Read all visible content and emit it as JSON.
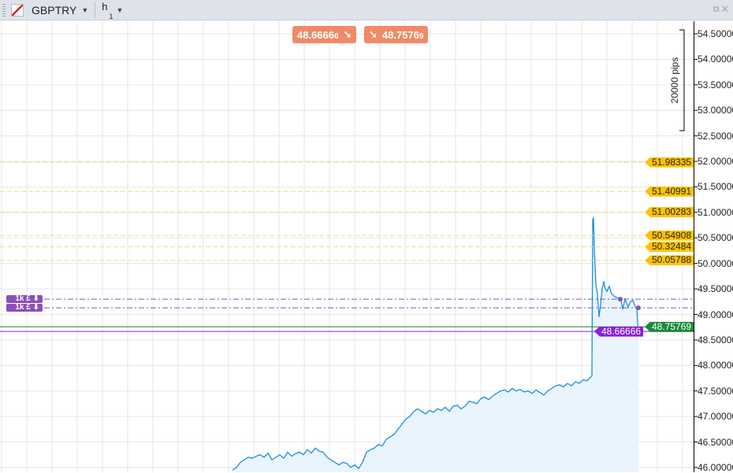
{
  "toolbar": {
    "symbol": "GBPTRY",
    "timeframe": "h",
    "timeframe_multiplier": "1",
    "symbol_icon": "instrument-flag-icon",
    "caret_icon": "chevron-down-icon",
    "popout_icon": "popout-icon",
    "close_icon": "close-icon"
  },
  "quotes": {
    "bid": "48.6666",
    "bid_small": "6",
    "ask": "48.7576",
    "ask_small": "9",
    "bid_arrow": "arrow-down-right-icon",
    "ask_arrow": "arrow-down-right-icon"
  },
  "ruler": {
    "label": "20000 pips"
  },
  "orders": [
    {
      "label": "1k £ ⬇",
      "price": 49.3
    },
    {
      "label": "1k £ ⬇",
      "price": 49.13
    }
  ],
  "price_tags": [
    {
      "label": "51.98335",
      "value": 51.98335
    },
    {
      "label": "51.40991",
      "value": 51.40991
    },
    {
      "label": "51.00283",
      "value": 51.00283
    },
    {
      "label": "50.54908",
      "value": 50.54908
    },
    {
      "label": "50.32484",
      "value": 50.32484
    },
    {
      "label": "50.05788",
      "value": 50.05788
    }
  ],
  "ask_tag": {
    "label": "48.75769",
    "value": 48.75769,
    "color": "#1a8a3a"
  },
  "bid_tag": {
    "label": "48.66666",
    "value": 48.66666,
    "color": "#8a1fd6"
  },
  "colors": {
    "line": "#1a90e0",
    "fill": "#eaf4fc",
    "level": "#f5d97a",
    "order": "#8a4fb8"
  },
  "chart_data": {
    "type": "area",
    "ylim": [
      46.0,
      54.5
    ],
    "y_ticks": [
      "54.50000",
      "54.00000",
      "53.50000",
      "53.00000",
      "52.50000",
      "52.00000",
      "51.50000",
      "51.00000",
      "50.50000",
      "50.00000",
      "49.50000",
      "49.00000",
      "48.50000",
      "48.00000",
      "47.50000",
      "47.00000",
      "46.50000",
      "46.00000"
    ],
    "x": [
      0,
      1,
      2,
      3,
      4,
      5,
      6,
      7,
      8,
      9,
      10,
      11,
      12,
      13,
      14,
      15,
      16,
      17,
      18,
      19,
      20,
      21,
      22,
      23,
      24,
      25,
      26,
      27,
      28,
      29,
      30,
      31,
      32,
      33,
      34,
      35,
      36,
      37,
      38,
      39,
      40,
      41,
      42,
      43,
      44,
      45,
      46,
      47,
      48,
      49,
      50,
      51,
      52,
      53,
      54,
      55,
      56,
      57,
      58,
      59,
      60,
      61,
      62,
      63,
      64,
      65,
      66,
      67,
      68,
      69,
      70,
      71,
      72,
      73,
      74,
      75,
      76,
      77,
      78,
      79,
      80,
      81,
      82,
      83,
      84,
      85,
      86,
      87,
      88,
      89,
      90,
      91.2,
      91.4,
      91.6,
      91.8,
      92.2,
      92.6,
      93,
      93.4,
      93.8,
      94.2,
      94.6,
      95,
      95.6,
      96.2,
      97,
      98,
      98.6,
      99,
      99.6,
      100.4,
      101,
      101.6,
      102.2,
      102.6,
      102.8,
      103
    ],
    "values": [
      45.95,
      46.0,
      46.1,
      46.15,
      46.2,
      46.18,
      46.22,
      46.25,
      46.2,
      46.28,
      46.15,
      46.2,
      46.25,
      46.18,
      46.3,
      46.22,
      46.27,
      46.3,
      46.25,
      46.35,
      46.28,
      46.38,
      46.32,
      46.3,
      46.2,
      46.15,
      46.1,
      46.05,
      46.1,
      46.08,
      46.0,
      46.05,
      45.98,
      46.1,
      46.3,
      46.35,
      46.38,
      46.45,
      46.42,
      46.55,
      46.6,
      46.65,
      46.75,
      46.85,
      46.95,
      47.0,
      47.1,
      47.15,
      47.1,
      47.05,
      47.12,
      47.08,
      47.15,
      47.12,
      47.18,
      47.1,
      47.2,
      47.22,
      47.15,
      47.2,
      47.3,
      47.28,
      47.25,
      47.35,
      47.38,
      47.33,
      47.4,
      47.45,
      47.5,
      47.52,
      47.48,
      47.55,
      47.5,
      47.53,
      47.48,
      47.5,
      47.45,
      47.52,
      47.47,
      47.42,
      47.5,
      47.55,
      47.6,
      47.62,
      47.58,
      47.65,
      47.6,
      47.68,
      47.65,
      47.72,
      47.7,
      47.8,
      50.85,
      50.9,
      50.3,
      49.6,
      49.4,
      48.95,
      49.2,
      49.5,
      49.65,
      49.5,
      49.45,
      49.55,
      49.4,
      49.35,
      49.32,
      49.28,
      49.1,
      49.3,
      49.15,
      49.25,
      49.28,
      49.15,
      49.1,
      48.85,
      48.67
    ],
    "markers": [
      {
        "x": 98.4,
        "value": 49.3
      },
      {
        "x": 103,
        "value": 49.13
      }
    ],
    "grid": true
  }
}
